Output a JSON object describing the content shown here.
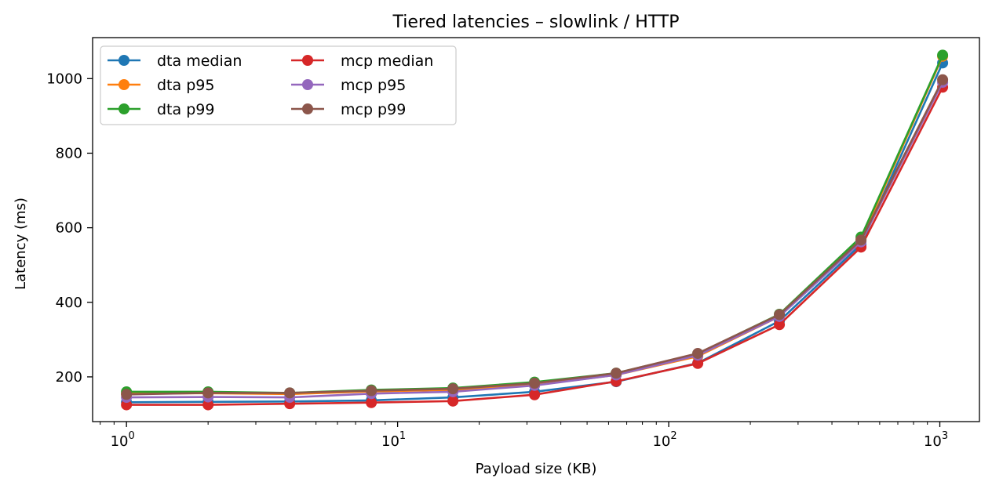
{
  "chart_data": {
    "type": "line",
    "title": "Tiered latencies – slowlink / HTTP",
    "xlabel": "Payload size (KB)",
    "ylabel": "Latency (ms)",
    "xscale": "log",
    "xlim": [
      0.75,
      1400
    ],
    "ylim": [
      80,
      1110
    ],
    "x": [
      1,
      2,
      4,
      8,
      16,
      32,
      64,
      128,
      256,
      512,
      1024
    ],
    "x_ticks": [
      {
        "value": 1,
        "base": "10",
        "exp": "0"
      },
      {
        "value": 10,
        "base": "10",
        "exp": "1"
      },
      {
        "value": 100,
        "base": "10",
        "exp": "2"
      },
      {
        "value": 1000,
        "base": "10",
        "exp": "3"
      }
    ],
    "y_ticks": [
      200,
      400,
      600,
      800,
      1000
    ],
    "grid": false,
    "legend": {
      "placement": "top-left",
      "columns": 2
    },
    "series": [
      {
        "name": "dta median",
        "color": "#1f77b4",
        "values": [
          132,
          133,
          134,
          137,
          145,
          160,
          187,
          237,
          350,
          555,
          1042
        ]
      },
      {
        "name": "dta p95",
        "color": "#ff7f0e",
        "values": [
          155,
          156,
          154,
          161,
          165,
          178,
          205,
          255,
          362,
          568,
          1060
        ]
      },
      {
        "name": "dta p99",
        "color": "#2ca02c",
        "values": [
          160,
          160,
          157,
          165,
          170,
          186,
          210,
          262,
          368,
          575,
          1063
        ]
      },
      {
        "name": "mcp median",
        "color": "#d62728",
        "values": [
          125,
          125,
          128,
          131,
          135,
          152,
          188,
          236,
          340,
          548,
          977
        ]
      },
      {
        "name": "mcp p95",
        "color": "#9467bd",
        "values": [
          145,
          146,
          145,
          155,
          160,
          177,
          205,
          258,
          362,
          562,
          990
        ]
      },
      {
        "name": "mcp p99",
        "color": "#8c564b",
        "values": [
          153,
          157,
          157,
          163,
          168,
          183,
          210,
          263,
          367,
          567,
          997
        ]
      }
    ]
  }
}
